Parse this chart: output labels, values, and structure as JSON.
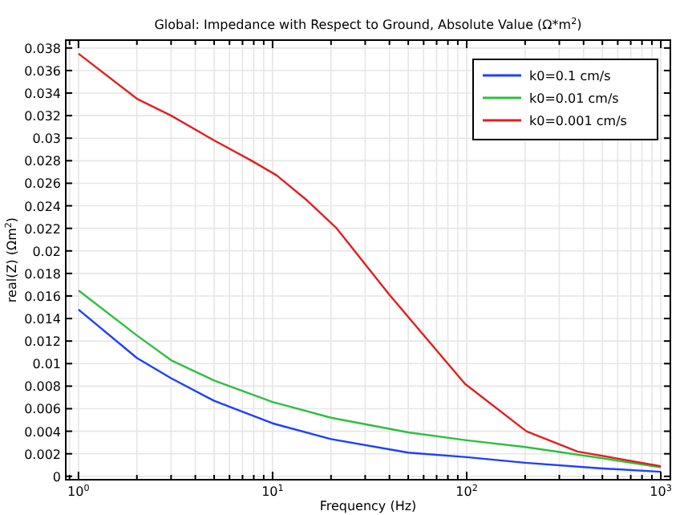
{
  "chart_data": {
    "type": "line",
    "title": "Global: Impedance with Respect to Ground, Absolute Value (Ω*m$^{2}$)",
    "xlabel": "Frequency (Hz)",
    "ylabel": "real(Z) (Ωm$^{2}$)",
    "log": "x",
    "grid": true,
    "legend": "top right",
    "marker": "none",
    "line_style": "solid",
    "x": [
      1,
      2,
      3,
      5,
      7.8,
      10.5,
      15,
      21.4,
      40,
      98,
      203,
      372,
      1000
    ],
    "xlim": [
      0.86,
      1120
    ],
    "xticks": [
      {
        "value": 0.9,
        "label": null
      },
      {
        "value": 1,
        "label": "10$^{0}$"
      },
      {
        "value": 2,
        "label": null
      },
      {
        "value": 3,
        "label": null
      },
      {
        "value": 4,
        "label": null
      },
      {
        "value": 5,
        "label": null
      },
      {
        "value": 6,
        "label": null
      },
      {
        "value": 7,
        "label": null
      },
      {
        "value": 8,
        "label": null
      },
      {
        "value": 9,
        "label": null
      },
      {
        "value": 10,
        "label": "10$^{1}$"
      },
      {
        "value": 20,
        "label": null
      },
      {
        "value": 30,
        "label": null
      },
      {
        "value": 40,
        "label": null
      },
      {
        "value": 50,
        "label": null
      },
      {
        "value": 60,
        "label": null
      },
      {
        "value": 70,
        "label": null
      },
      {
        "value": 80,
        "label": null
      },
      {
        "value": 90,
        "label": null
      },
      {
        "value": 100,
        "label": "10$^{2}$"
      },
      {
        "value": 200,
        "label": null
      },
      {
        "value": 300,
        "label": null
      },
      {
        "value": 400,
        "label": null
      },
      {
        "value": 500,
        "label": null
      },
      {
        "value": 600,
        "label": null
      },
      {
        "value": 700,
        "label": null
      },
      {
        "value": 800,
        "label": null
      },
      {
        "value": 900,
        "label": null
      },
      {
        "value": 1000,
        "label": "10$^{3}$"
      }
    ],
    "ylim": [
      -0.0003,
      0.0387
    ],
    "yticks": [
      0,
      0.002,
      0.004,
      0.006,
      0.008,
      0.01,
      0.012,
      0.014,
      0.016,
      0.018,
      0.02,
      0.022,
      0.024,
      0.026,
      0.028,
      0.03,
      0.032,
      0.034,
      0.036,
      0.038
    ],
    "series": [
      {
        "name": "k0=0.1 cm/s",
        "color": "#1f3fff",
        "x": [
          1,
          2,
          3,
          5,
          10,
          20,
          50,
          100,
          200,
          500,
          1000
        ],
        "values": [
          0.0148,
          0.0105,
          0.0087,
          0.0067,
          0.0047,
          0.0033,
          0.0021,
          0.0017,
          0.0012,
          0.0007,
          0.0004
        ]
      },
      {
        "name": "k0=0.01 cm/s",
        "color": "#2fbf3f",
        "x": [
          1,
          2,
          3,
          5,
          10,
          20,
          50,
          100,
          200,
          500,
          1000
        ],
        "values": [
          0.0165,
          0.0125,
          0.0103,
          0.0085,
          0.0066,
          0.0052,
          0.0039,
          0.0032,
          0.0026,
          0.0016,
          0.0008
        ]
      },
      {
        "name": "k0=0.001 cm/s",
        "color": "#e02020",
        "values": [
          0.0375,
          0.0335,
          0.032,
          0.0298,
          0.028,
          0.0267,
          0.0245,
          0.022,
          0.0161,
          0.0082,
          0.004,
          0.0022,
          0.0009
        ]
      }
    ]
  }
}
